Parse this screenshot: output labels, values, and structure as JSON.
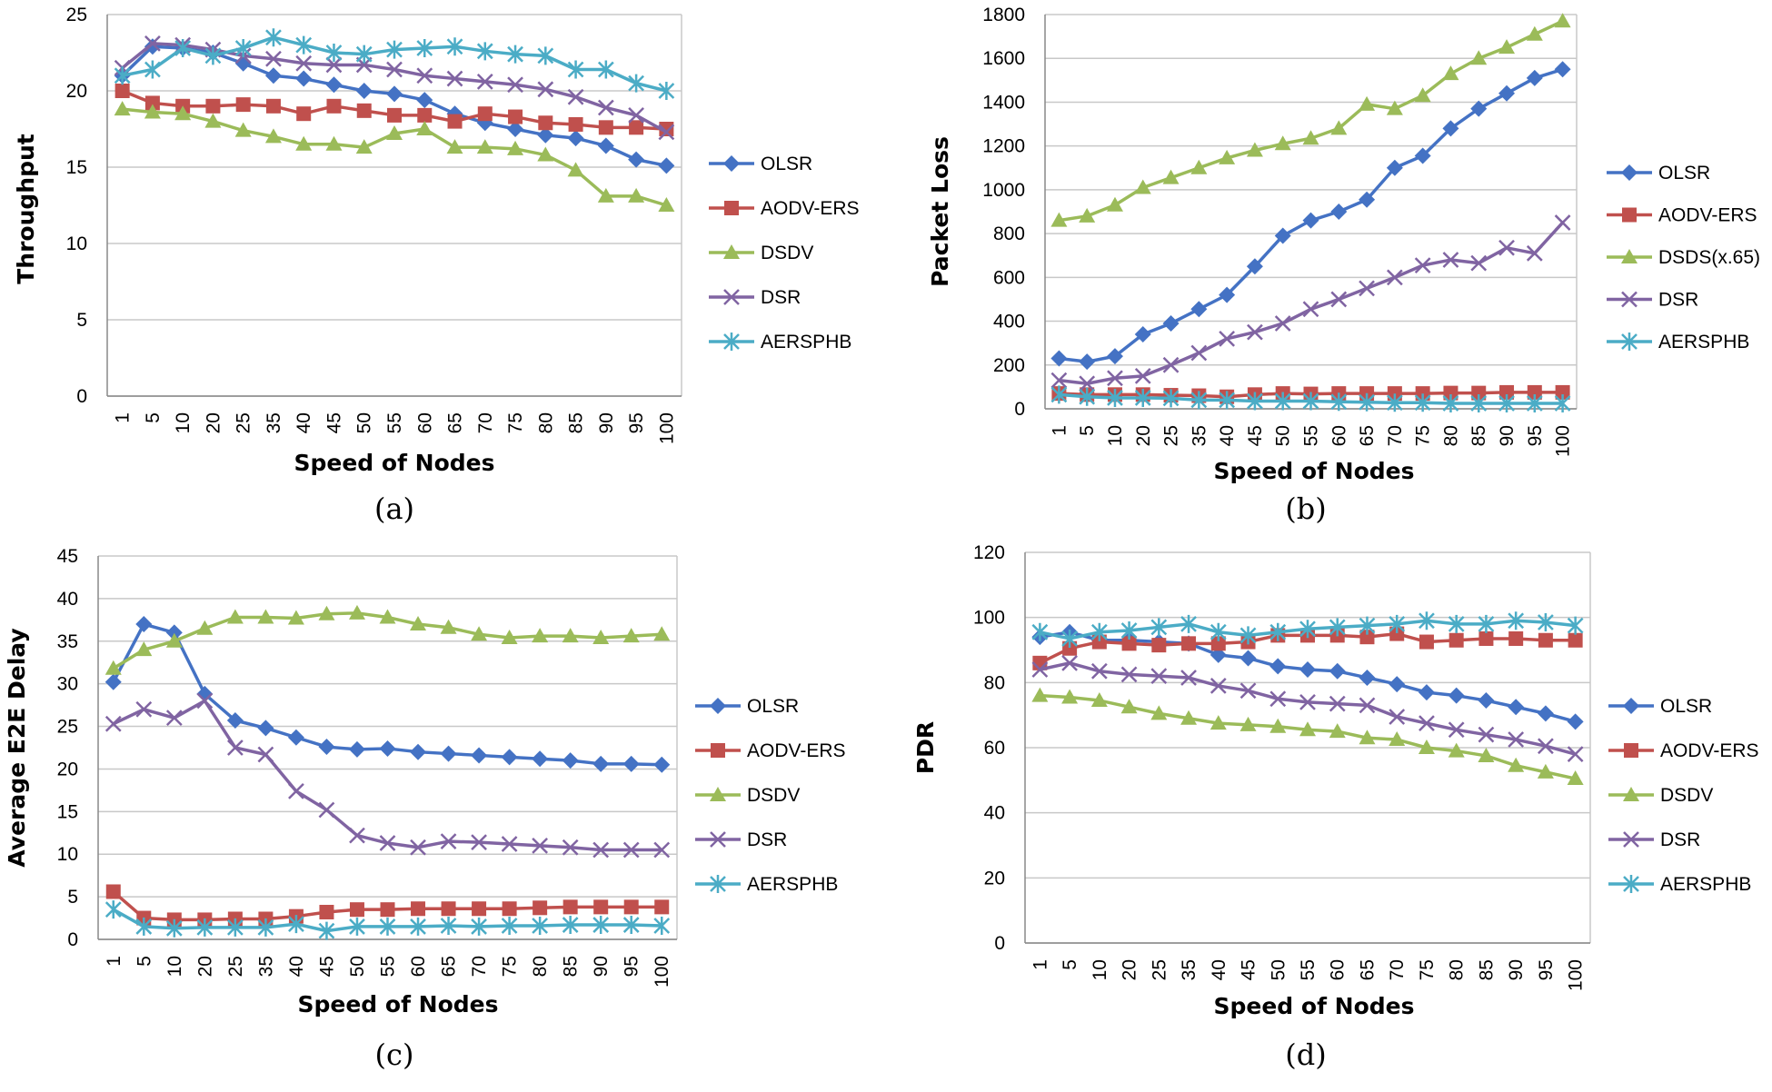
{
  "colors": {
    "OLSR": "#4472C4",
    "AODV-ERS": "#C0504D",
    "DSDV": "#9BBB59",
    "DSR": "#8064A2",
    "AERSPHB": "#4BACC6",
    "grid": "#c8c8c8"
  },
  "chart_data": [
    {
      "type": "line",
      "caption": "(a)",
      "xlabel": "Speed of Nodes",
      "ylabel": "Throughput",
      "categories": [
        "1",
        "5",
        "10",
        "20",
        "25",
        "35",
        "40",
        "45",
        "50",
        "55",
        "60",
        "65",
        "70",
        "75",
        "80",
        "85",
        "90",
        "95",
        "100"
      ],
      "ylim": [
        0,
        25
      ],
      "yticks": [
        0,
        5,
        10,
        15,
        20,
        25
      ],
      "grid": true,
      "legend": "right",
      "series": [
        {
          "name": "OLSR",
          "marker": "diamond",
          "values": [
            21,
            22.9,
            22.8,
            22.5,
            21.8,
            21,
            20.8,
            20.4,
            20,
            19.8,
            19.4,
            18.5,
            17.9,
            17.5,
            17.1,
            16.9,
            16.4,
            15.5,
            15.1
          ]
        },
        {
          "name": "AODV-ERS",
          "marker": "square",
          "values": [
            20,
            19.2,
            19,
            19,
            19.1,
            19,
            18.5,
            19,
            18.7,
            18.4,
            18.4,
            18,
            18.5,
            18.3,
            17.9,
            17.8,
            17.6,
            17.6,
            17.5
          ]
        },
        {
          "name": "DSDV",
          "marker": "triangle",
          "values": [
            18.8,
            18.6,
            18.5,
            18,
            17.4,
            17,
            16.5,
            16.5,
            16.3,
            17.2,
            17.5,
            16.3,
            16.3,
            16.2,
            15.8,
            14.8,
            13.1,
            13.1,
            12.5
          ]
        },
        {
          "name": "DSR",
          "marker": "x",
          "values": [
            21.5,
            23.1,
            23,
            22.7,
            22.3,
            22.1,
            21.8,
            21.7,
            21.7,
            21.4,
            21,
            20.8,
            20.6,
            20.4,
            20.1,
            19.6,
            18.9,
            18.4,
            17.3
          ]
        },
        {
          "name": "AERSPHB",
          "marker": "asterisk",
          "values": [
            21,
            21.4,
            22.8,
            22.3,
            22.8,
            23.5,
            23,
            22.5,
            22.4,
            22.7,
            22.8,
            22.9,
            22.6,
            22.4,
            22.3,
            21.4,
            21.4,
            20.5,
            20
          ]
        }
      ]
    },
    {
      "type": "line",
      "caption": "(b)",
      "xlabel": "Speed  of Nodes",
      "ylabel": "Packet Loss",
      "categories": [
        "1",
        "5",
        "10",
        "20",
        "25",
        "35",
        "40",
        "45",
        "50",
        "55",
        "60",
        "65",
        "70",
        "75",
        "80",
        "85",
        "90",
        "95",
        "100"
      ],
      "ylim": [
        0,
        1800
      ],
      "yticks": [
        0,
        200,
        400,
        600,
        800,
        1000,
        1200,
        1400,
        1600,
        1800
      ],
      "grid": true,
      "legend": "right",
      "series": [
        {
          "name": "OLSR",
          "marker": "diamond",
          "values": [
            230,
            215,
            240,
            340,
            390,
            455,
            520,
            650,
            790,
            860,
            900,
            955,
            1100,
            1155,
            1280,
            1370,
            1440,
            1510,
            1550
          ]
        },
        {
          "name": "AODV-ERS",
          "marker": "square",
          "values": [
            70,
            65,
            65,
            65,
            62,
            60,
            55,
            65,
            70,
            68,
            70,
            70,
            70,
            70,
            72,
            72,
            75,
            75,
            75
          ]
        },
        {
          "name": "DSDS(x.65)",
          "marker": "triangle",
          "values": [
            860,
            880,
            930,
            1010,
            1055,
            1100,
            1145,
            1180,
            1210,
            1235,
            1280,
            1390,
            1370,
            1430,
            1530,
            1600,
            1650,
            1710,
            1770
          ]
        },
        {
          "name": "DSR",
          "marker": "x",
          "values": [
            130,
            115,
            140,
            150,
            200,
            255,
            320,
            350,
            390,
            455,
            500,
            550,
            600,
            655,
            680,
            665,
            735,
            710,
            850
          ]
        },
        {
          "name": "AERSPHB",
          "marker": "asterisk",
          "values": [
            65,
            55,
            50,
            50,
            48,
            40,
            40,
            35,
            35,
            35,
            32,
            30,
            28,
            28,
            25,
            25,
            25,
            25,
            25
          ]
        }
      ]
    },
    {
      "type": "line",
      "caption": "(c)",
      "xlabel": "Speed  of Nodes",
      "ylabel": "Average E2E Delay",
      "categories": [
        "1",
        "5",
        "10",
        "20",
        "25",
        "35",
        "40",
        "45",
        "50",
        "55",
        "60",
        "65",
        "70",
        "75",
        "80",
        "85",
        "90",
        "95",
        "100"
      ],
      "ylim": [
        0,
        45
      ],
      "yticks": [
        0,
        5,
        10,
        15,
        20,
        25,
        30,
        35,
        40,
        45
      ],
      "grid": true,
      "legend": "right",
      "series": [
        {
          "name": "OLSR",
          "marker": "diamond",
          "values": [
            30.2,
            37,
            36,
            28.8,
            25.7,
            24.8,
            23.7,
            22.6,
            22.3,
            22.4,
            22,
            21.8,
            21.6,
            21.4,
            21.2,
            21,
            20.6,
            20.6,
            20.5
          ]
        },
        {
          "name": "AODV-ERS",
          "marker": "square",
          "values": [
            5.6,
            2.5,
            2.3,
            2.3,
            2.4,
            2.4,
            2.7,
            3.2,
            3.5,
            3.5,
            3.6,
            3.6,
            3.6,
            3.6,
            3.7,
            3.8,
            3.8,
            3.8,
            3.8
          ]
        },
        {
          "name": "DSDV",
          "marker": "triangle",
          "values": [
            31.8,
            34,
            35,
            36.5,
            37.8,
            37.8,
            37.7,
            38.2,
            38.3,
            37.8,
            37,
            36.6,
            35.8,
            35.4,
            35.6,
            35.6,
            35.4,
            35.6,
            35.8
          ]
        },
        {
          "name": "DSR",
          "marker": "x",
          "values": [
            25.3,
            27,
            26,
            28,
            22.5,
            21.7,
            17.4,
            15.2,
            12.2,
            11.3,
            10.8,
            11.5,
            11.4,
            11.2,
            11,
            10.8,
            10.5,
            10.5,
            10.5
          ]
        },
        {
          "name": "AERSPHB",
          "marker": "asterisk",
          "values": [
            3.5,
            1.5,
            1.3,
            1.4,
            1.4,
            1.4,
            1.8,
            1,
            1.5,
            1.5,
            1.5,
            1.6,
            1.5,
            1.6,
            1.6,
            1.7,
            1.7,
            1.7,
            1.6
          ]
        }
      ]
    },
    {
      "type": "line",
      "caption": "(d)",
      "xlabel": "Speed  of Nodes",
      "ylabel": "PDR",
      "categories": [
        "1",
        "5",
        "10",
        "20",
        "25",
        "35",
        "40",
        "45",
        "50",
        "55",
        "60",
        "65",
        "70",
        "75",
        "80",
        "85",
        "90",
        "95",
        "100"
      ],
      "ylim": [
        0,
        120
      ],
      "yticks": [
        0,
        20,
        40,
        60,
        80,
        100,
        120
      ],
      "grid": true,
      "legend": "right",
      "series": [
        {
          "name": "OLSR",
          "marker": "diamond",
          "values": [
            94,
            95.5,
            93,
            93,
            92.5,
            92,
            88.5,
            87.5,
            85,
            84,
            83.5,
            81.5,
            79.5,
            77,
            76,
            74.5,
            72.5,
            70.5,
            68
          ]
        },
        {
          "name": "AODV-ERS",
          "marker": "square",
          "values": [
            86,
            90.5,
            92.5,
            92,
            91.5,
            92,
            92,
            92.5,
            94.5,
            94.5,
            94.5,
            94,
            95,
            92.5,
            93,
            93.5,
            93.5,
            93,
            93
          ]
        },
        {
          "name": "DSDV",
          "marker": "triangle",
          "values": [
            76,
            75.5,
            74.5,
            72.5,
            70.5,
            69,
            67.5,
            67,
            66.5,
            65.5,
            65,
            63,
            62.5,
            60,
            59,
            57.5,
            54.5,
            52.5,
            50.5
          ]
        },
        {
          "name": "DSR",
          "marker": "x",
          "values": [
            84,
            86,
            83.5,
            82.5,
            82,
            81.5,
            79,
            77.5,
            75,
            74,
            73.5,
            73,
            69.5,
            67.5,
            65.5,
            64,
            62.5,
            60.5,
            58
          ]
        },
        {
          "name": "AERSPHB",
          "marker": "asterisk",
          "values": [
            95.5,
            93.5,
            95.5,
            96,
            97,
            98,
            95.5,
            94.5,
            95.5,
            96.5,
            97,
            97.5,
            98,
            99,
            98,
            98,
            99,
            98.5,
            97.5
          ]
        }
      ]
    }
  ]
}
